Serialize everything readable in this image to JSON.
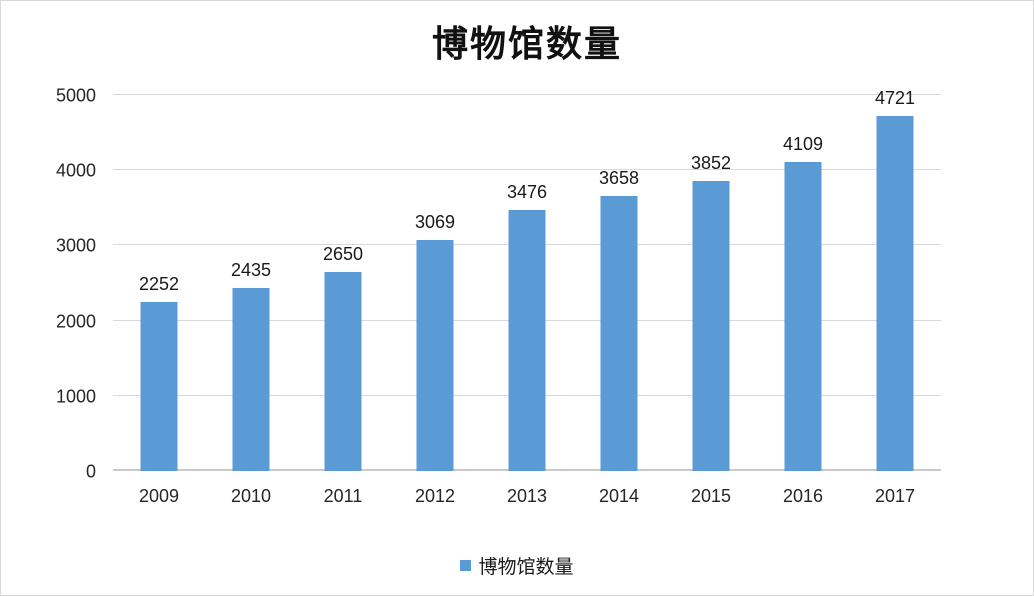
{
  "chart_data": {
    "type": "bar",
    "title": "博物馆数量",
    "categories": [
      "2009",
      "2010",
      "2011",
      "2012",
      "2013",
      "2014",
      "2015",
      "2016",
      "2017"
    ],
    "values": [
      2252,
      2435,
      2650,
      3069,
      3476,
      3658,
      3852,
      4109,
      4721
    ],
    "series_name": "博物馆数量",
    "xlabel": "",
    "ylabel": "",
    "ylim": [
      0,
      5000
    ],
    "y_ticks": [
      0,
      1000,
      2000,
      3000,
      4000,
      5000
    ],
    "grid": true,
    "data_labels": true,
    "legend_position": "bottom",
    "bar_color": "#5b9bd5"
  },
  "legend": {
    "label": "博物馆数量",
    "swatch_icon": "square-swatch-icon",
    "swatch_color": "#5b9bd5"
  },
  "colors": {
    "bar": "#5b9bd5",
    "gridline": "#d9d9d9",
    "text": "#262626",
    "background": "#ffffff"
  }
}
